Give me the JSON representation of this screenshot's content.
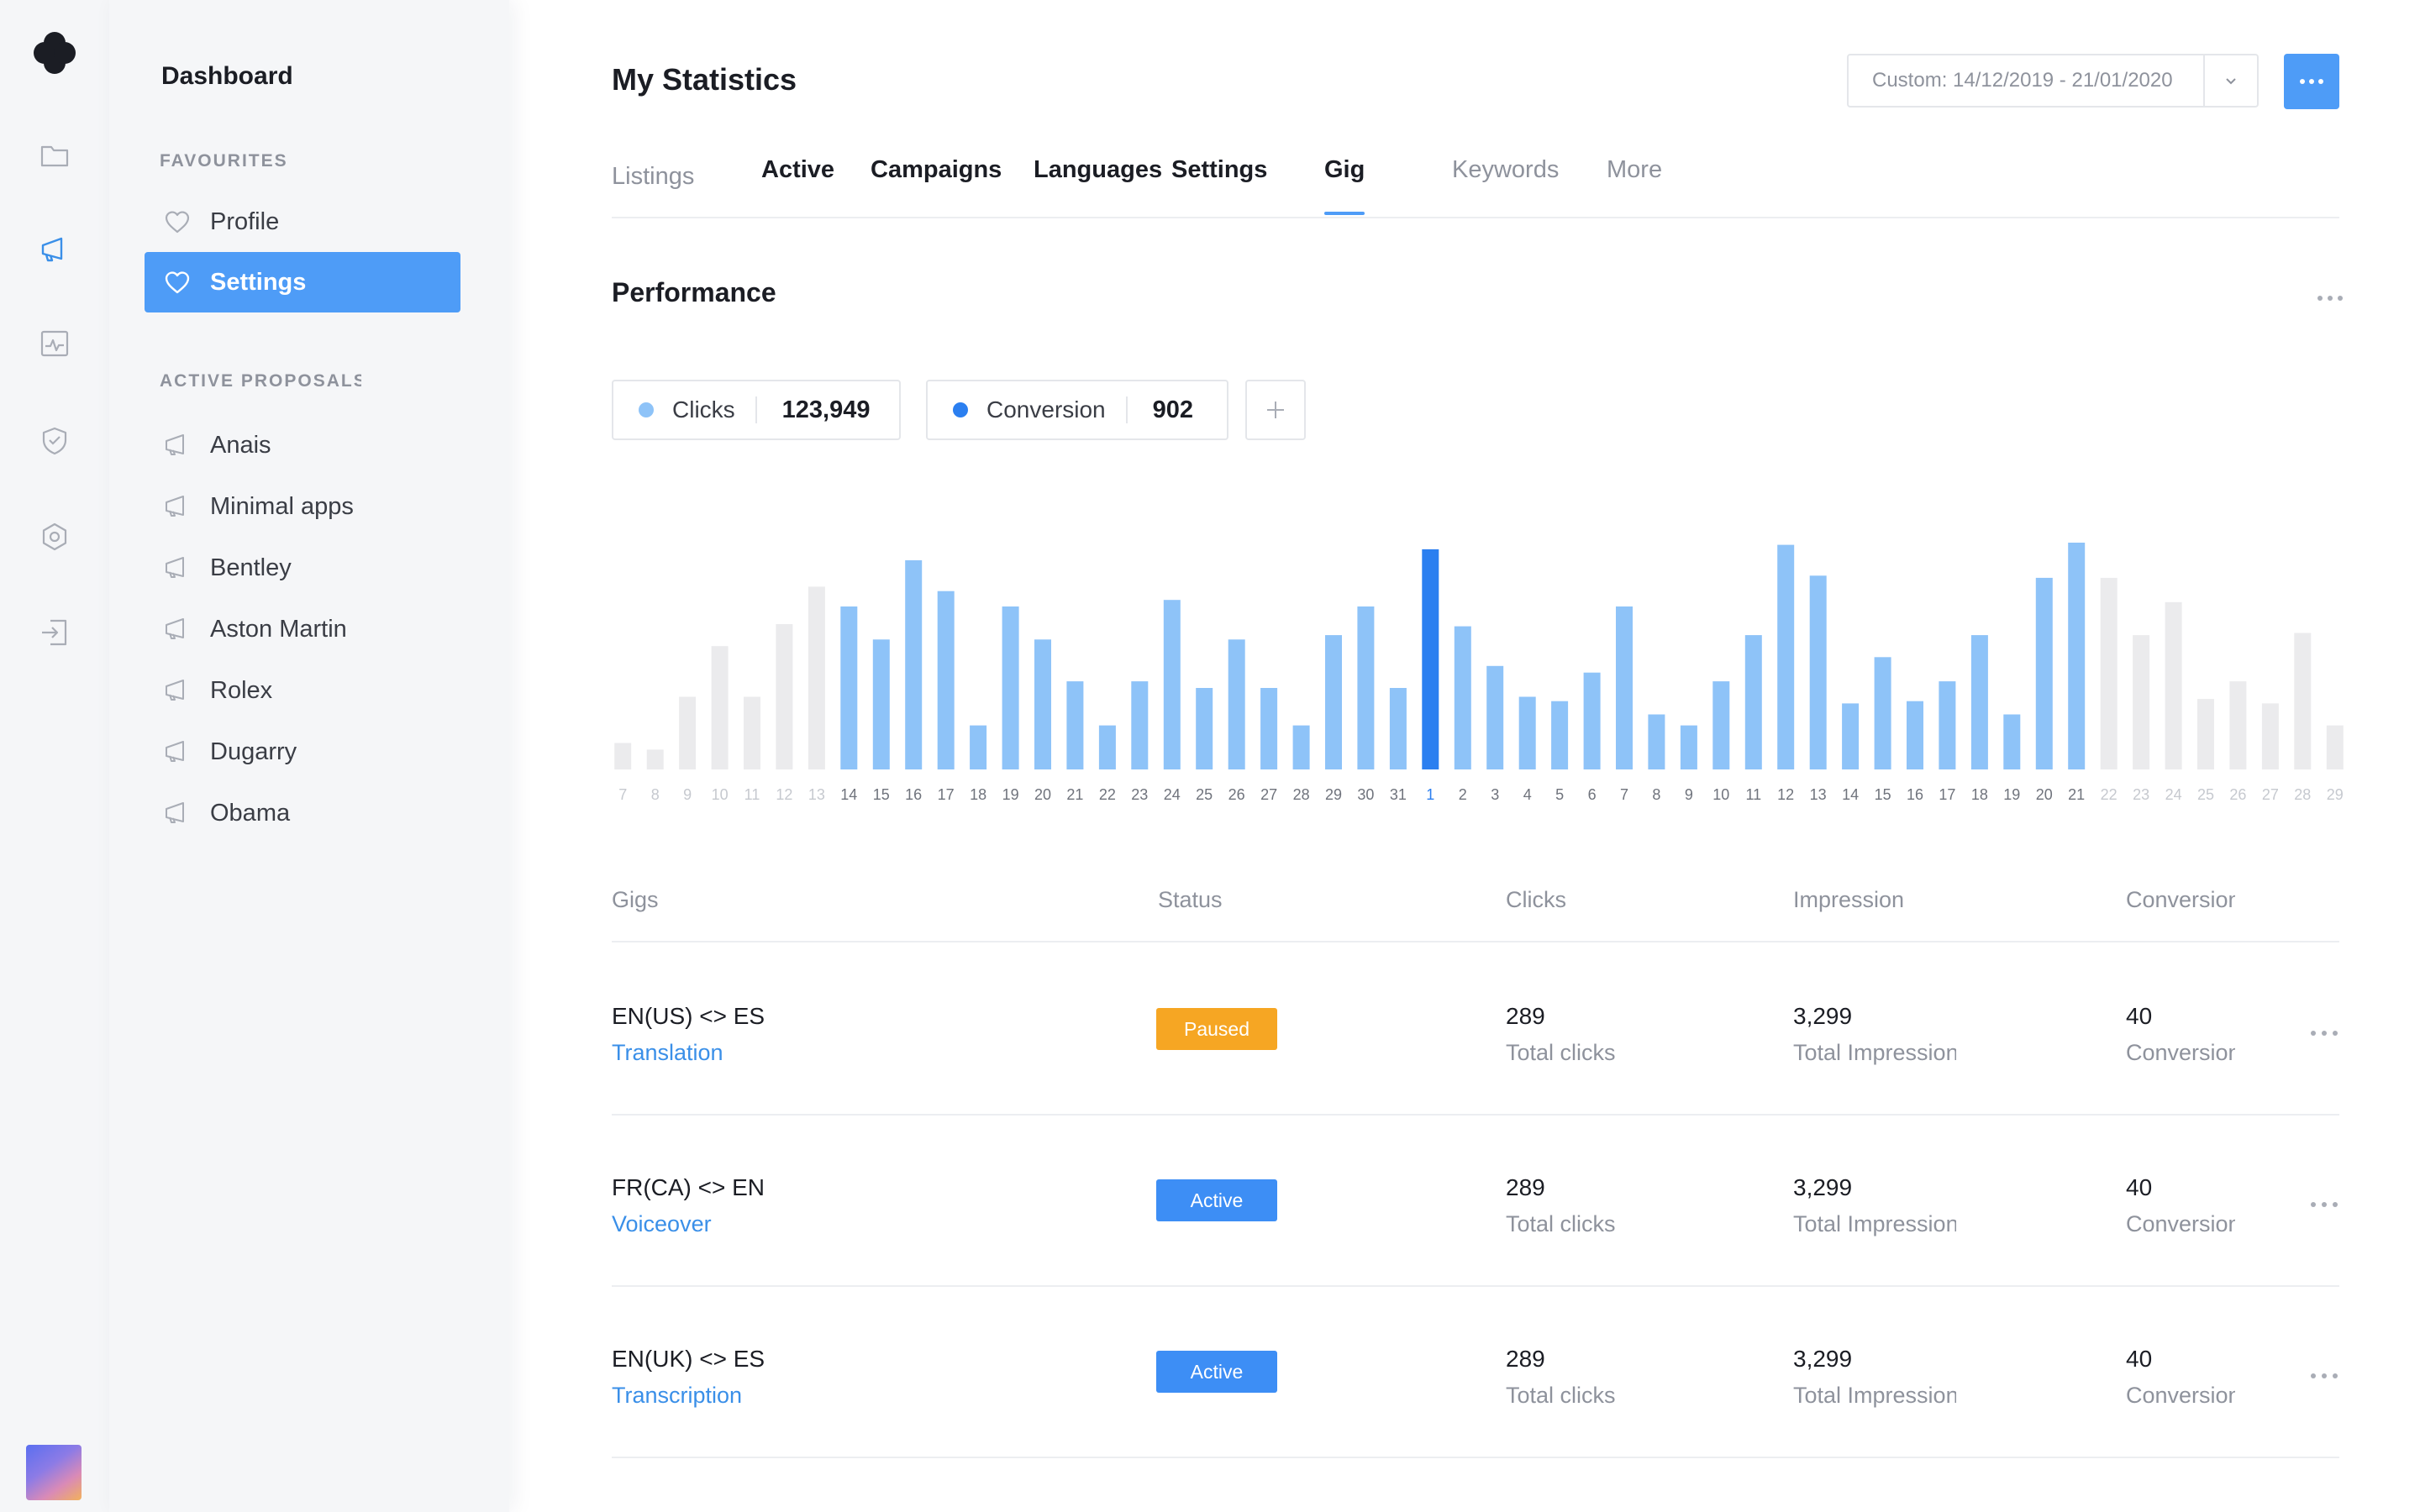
{
  "sidebar": {
    "title": "Dashboard",
    "favourites_label": "FAVOURITES",
    "favourites": [
      {
        "label": "Profile",
        "active": false
      },
      {
        "label": "Settings",
        "active": true
      }
    ],
    "proposals_label": "ACTIVE PROPOSALS",
    "proposals": [
      "Anais",
      "Minimal apps",
      "Bentley",
      "Aston Martin",
      "Rolex",
      "Dugarry",
      "Obama"
    ]
  },
  "rail_icons": [
    "folder-icon",
    "megaphone-icon",
    "activity-icon",
    "shield-icon",
    "settings-icon",
    "logout-icon"
  ],
  "header": {
    "title": "My Statistics",
    "date_range": "Custom: 14/12/2019 - 21/01/2020"
  },
  "tabs": [
    {
      "label": "Listings",
      "style": "muted"
    },
    {
      "label": "Active",
      "style": "strong"
    },
    {
      "label": "Campaigns",
      "style": "strong"
    },
    {
      "label": "Languages",
      "style": "strong"
    },
    {
      "label": "Settings",
      "style": "strong"
    },
    {
      "label": "Gig",
      "style": "strong",
      "current": true
    },
    {
      "label": "Keywords",
      "style": "muted"
    },
    {
      "label": "More",
      "style": "muted"
    }
  ],
  "performance": {
    "title": "Performance",
    "metrics": [
      {
        "label": "Clicks",
        "value": "123,949",
        "color": "#8ec3f8"
      },
      {
        "label": "Conversion",
        "value": "902",
        "color": "#2b7ff0"
      }
    ]
  },
  "chart_data": {
    "type": "bar",
    "categories": [
      "7",
      "8",
      "9",
      "10",
      "11",
      "12",
      "13",
      "14",
      "15",
      "16",
      "17",
      "18",
      "19",
      "20",
      "21",
      "22",
      "23",
      "24",
      "25",
      "26",
      "27",
      "28",
      "29",
      "30",
      "31",
      "1",
      "2",
      "3",
      "4",
      "5",
      "6",
      "7",
      "8",
      "9",
      "10",
      "11",
      "12",
      "13",
      "14",
      "15",
      "16",
      "17",
      "18",
      "19",
      "20",
      "21",
      "22",
      "23",
      "24",
      "25",
      "26",
      "27",
      "28",
      "29"
    ],
    "values": [
      12,
      9,
      33,
      56,
      33,
      66,
      83,
      74,
      59,
      95,
      81,
      20,
      74,
      59,
      40,
      20,
      40,
      77,
      37,
      59,
      37,
      20,
      61,
      74,
      37,
      100,
      65,
      47,
      33,
      31,
      44,
      74,
      25,
      20,
      40,
      61,
      102,
      88,
      30,
      51,
      31,
      40,
      61,
      25,
      87,
      103,
      87,
      61,
      76,
      32,
      40,
      30,
      62,
      20
    ],
    "highlight_index": 25,
    "segments": [
      {
        "from": 0,
        "to": 6,
        "style": "inactive"
      },
      {
        "from": 7,
        "to": 45,
        "style": "active"
      },
      {
        "from": 46,
        "to": 53,
        "style": "inactive"
      }
    ],
    "colors": {
      "inactive": "#ebebed",
      "active": "#8ec3f8",
      "highlight": "#2b7ff0"
    }
  },
  "table": {
    "headers": [
      "Gigs",
      "Status",
      "Clicks",
      "Impression",
      "Conversion"
    ],
    "rows": [
      {
        "name": "EN(US) <> ES",
        "type": "Translation",
        "status": "Paused",
        "status_style": "paused",
        "clicks": "289",
        "clicks_sub": "Total clicks",
        "impressions": "3,299",
        "impressions_sub": "Total Impressions",
        "conversions": "40",
        "conversions_sub": "Conversions"
      },
      {
        "name": "FR(CA) <> EN",
        "type": "Voiceover",
        "status": "Active",
        "status_style": "active",
        "clicks": "289",
        "clicks_sub": "Total clicks",
        "impressions": "3,299",
        "impressions_sub": "Total Impressions",
        "conversions": "40",
        "conversions_sub": "Conversions"
      },
      {
        "name": "EN(UK) <> ES",
        "type": "Transcription",
        "status": "Active",
        "status_style": "active",
        "clicks": "289",
        "clicks_sub": "Total clicks",
        "impressions": "3,299",
        "impressions_sub": "Total Impressions",
        "conversions": "40",
        "conversions_sub": "Conversions"
      }
    ]
  }
}
